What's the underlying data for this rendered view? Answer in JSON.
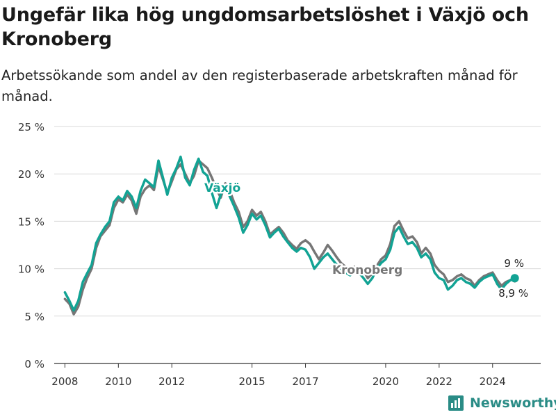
{
  "header": {
    "title": "Ungefär lika hög ungdomsarbetslöshet i Växjö och Kronoberg",
    "subtitle": "Arbetssökande som andel av den registerbaserade arbetskraften månad för månad."
  },
  "brand": {
    "name": "Newsworthy"
  },
  "colors": {
    "vaxjo": "#12a394",
    "kronoberg": "#767676",
    "grid": "#d9d9d9",
    "axis": "#333333",
    "brand": "#2a8c86"
  },
  "chart_data": {
    "type": "line",
    "xlim": [
      2007.6,
      2025.8
    ],
    "ylim": [
      0,
      25
    ],
    "grid": true,
    "y_ticks": [
      {
        "value": 0,
        "label": "0 %"
      },
      {
        "value": 5,
        "label": "5 %"
      },
      {
        "value": 10,
        "label": "10 %"
      },
      {
        "value": 15,
        "label": "15 %"
      },
      {
        "value": 20,
        "label": "20 %"
      },
      {
        "value": 25,
        "label": "25 %"
      }
    ],
    "x_ticks": [
      {
        "value": 2008,
        "label": "2008"
      },
      {
        "value": 2010,
        "label": "2010"
      },
      {
        "value": 2012,
        "label": "2012"
      },
      {
        "value": 2015,
        "label": "2015"
      },
      {
        "value": 2017,
        "label": "2017"
      },
      {
        "value": 2020,
        "label": "2020"
      },
      {
        "value": 2022,
        "label": "2022"
      },
      {
        "value": 2024,
        "label": "2024"
      }
    ],
    "series": [
      {
        "name": "Kronoberg",
        "color": "#767676",
        "end_label": "8,9 %",
        "points": [
          [
            2008.0,
            6.8
          ],
          [
            2008.17,
            6.3
          ],
          [
            2008.33,
            5.2
          ],
          [
            2008.5,
            6.0
          ],
          [
            2008.67,
            7.8
          ],
          [
            2008.83,
            9.0
          ],
          [
            2009.0,
            10.0
          ],
          [
            2009.17,
            12.2
          ],
          [
            2009.33,
            13.4
          ],
          [
            2009.5,
            14.0
          ],
          [
            2009.67,
            14.6
          ],
          [
            2009.83,
            16.4
          ],
          [
            2010.0,
            17.3
          ],
          [
            2010.17,
            17.0
          ],
          [
            2010.33,
            17.8
          ],
          [
            2010.5,
            17.2
          ],
          [
            2010.67,
            15.8
          ],
          [
            2010.83,
            17.6
          ],
          [
            2011.0,
            18.4
          ],
          [
            2011.17,
            18.8
          ],
          [
            2011.33,
            18.3
          ],
          [
            2011.5,
            20.8
          ],
          [
            2011.67,
            19.4
          ],
          [
            2011.83,
            18.0
          ],
          [
            2012.0,
            19.2
          ],
          [
            2012.17,
            20.5
          ],
          [
            2012.33,
            21.0
          ],
          [
            2012.5,
            20.0
          ],
          [
            2012.67,
            19.0
          ],
          [
            2012.83,
            19.8
          ],
          [
            2013.0,
            21.4
          ],
          [
            2013.17,
            21.0
          ],
          [
            2013.33,
            20.6
          ],
          [
            2013.5,
            19.6
          ],
          [
            2013.67,
            18.4
          ],
          [
            2013.83,
            17.5
          ],
          [
            2014.0,
            19.0
          ],
          [
            2014.17,
            18.2
          ],
          [
            2014.33,
            17.0
          ],
          [
            2014.5,
            16.0
          ],
          [
            2014.67,
            14.4
          ],
          [
            2014.83,
            15.0
          ],
          [
            2015.0,
            16.2
          ],
          [
            2015.17,
            15.6
          ],
          [
            2015.33,
            16.0
          ],
          [
            2015.5,
            15.0
          ],
          [
            2015.67,
            13.6
          ],
          [
            2015.83,
            14.0
          ],
          [
            2016.0,
            14.4
          ],
          [
            2016.17,
            13.8
          ],
          [
            2016.33,
            13.0
          ],
          [
            2016.5,
            12.5
          ],
          [
            2016.67,
            12.1
          ],
          [
            2016.83,
            12.7
          ],
          [
            2017.0,
            13.0
          ],
          [
            2017.17,
            12.6
          ],
          [
            2017.33,
            11.8
          ],
          [
            2017.5,
            11.0
          ],
          [
            2017.67,
            11.7
          ],
          [
            2017.83,
            12.5
          ],
          [
            2018.0,
            11.9
          ],
          [
            2018.17,
            11.2
          ],
          [
            2018.33,
            10.6
          ],
          [
            2018.5,
            10.2
          ],
          [
            2018.67,
            9.8
          ],
          [
            2018.83,
            10.2
          ],
          [
            2019.0,
            10.0
          ],
          [
            2019.17,
            9.8
          ],
          [
            2019.33,
            9.0
          ],
          [
            2019.5,
            9.5
          ],
          [
            2019.67,
            10.3
          ],
          [
            2019.83,
            11.0
          ],
          [
            2020.0,
            11.4
          ],
          [
            2020.17,
            12.6
          ],
          [
            2020.33,
            14.5
          ],
          [
            2020.5,
            15.0
          ],
          [
            2020.67,
            14.0
          ],
          [
            2020.83,
            13.2
          ],
          [
            2021.0,
            13.4
          ],
          [
            2021.17,
            12.8
          ],
          [
            2021.33,
            11.6
          ],
          [
            2021.5,
            12.2
          ],
          [
            2021.67,
            11.6
          ],
          [
            2021.83,
            10.4
          ],
          [
            2022.0,
            9.8
          ],
          [
            2022.17,
            9.4
          ],
          [
            2022.33,
            8.6
          ],
          [
            2022.5,
            8.8
          ],
          [
            2022.67,
            9.2
          ],
          [
            2022.83,
            9.4
          ],
          [
            2023.0,
            9.0
          ],
          [
            2023.17,
            8.8
          ],
          [
            2023.33,
            8.2
          ],
          [
            2023.5,
            8.8
          ],
          [
            2023.67,
            9.2
          ],
          [
            2023.83,
            9.4
          ],
          [
            2024.0,
            9.6
          ],
          [
            2024.17,
            8.8
          ],
          [
            2024.33,
            8.2
          ],
          [
            2024.5,
            8.6
          ],
          [
            2024.67,
            8.8
          ],
          [
            2024.83,
            8.9
          ]
        ]
      },
      {
        "name": "Växjö",
        "color": "#12a394",
        "end_label": "9 %",
        "points": [
          [
            2008.0,
            7.5
          ],
          [
            2008.17,
            6.6
          ],
          [
            2008.33,
            5.6
          ],
          [
            2008.5,
            6.6
          ],
          [
            2008.67,
            8.6
          ],
          [
            2008.83,
            9.5
          ],
          [
            2009.0,
            10.4
          ],
          [
            2009.17,
            12.7
          ],
          [
            2009.33,
            13.6
          ],
          [
            2009.5,
            14.4
          ],
          [
            2009.67,
            15.0
          ],
          [
            2009.83,
            17.0
          ],
          [
            2010.0,
            17.6
          ],
          [
            2010.17,
            17.2
          ],
          [
            2010.33,
            18.2
          ],
          [
            2010.5,
            17.6
          ],
          [
            2010.67,
            16.4
          ],
          [
            2010.83,
            18.2
          ],
          [
            2011.0,
            19.4
          ],
          [
            2011.17,
            19.0
          ],
          [
            2011.33,
            18.6
          ],
          [
            2011.5,
            21.4
          ],
          [
            2011.67,
            19.6
          ],
          [
            2011.83,
            17.8
          ],
          [
            2012.0,
            19.6
          ],
          [
            2012.17,
            20.6
          ],
          [
            2012.33,
            21.8
          ],
          [
            2012.5,
            19.6
          ],
          [
            2012.67,
            18.8
          ],
          [
            2012.83,
            20.4
          ],
          [
            2013.0,
            21.6
          ],
          [
            2013.17,
            20.2
          ],
          [
            2013.33,
            19.8
          ],
          [
            2013.5,
            18.0
          ],
          [
            2013.67,
            16.4
          ],
          [
            2013.83,
            17.8
          ],
          [
            2014.0,
            18.8
          ],
          [
            2014.17,
            17.6
          ],
          [
            2014.33,
            16.6
          ],
          [
            2014.5,
            15.4
          ],
          [
            2014.67,
            13.8
          ],
          [
            2014.83,
            14.6
          ],
          [
            2015.0,
            15.8
          ],
          [
            2015.17,
            15.2
          ],
          [
            2015.33,
            15.6
          ],
          [
            2015.5,
            14.6
          ],
          [
            2015.67,
            13.3
          ],
          [
            2015.83,
            13.8
          ],
          [
            2016.0,
            14.2
          ],
          [
            2016.17,
            13.4
          ],
          [
            2016.33,
            12.8
          ],
          [
            2016.5,
            12.2
          ],
          [
            2016.67,
            11.8
          ],
          [
            2016.83,
            12.2
          ],
          [
            2017.0,
            12.0
          ],
          [
            2017.17,
            11.2
          ],
          [
            2017.33,
            10.0
          ],
          [
            2017.5,
            10.6
          ],
          [
            2017.67,
            11.2
          ],
          [
            2017.83,
            11.6
          ],
          [
            2018.0,
            11.0
          ],
          [
            2018.17,
            10.4
          ],
          [
            2018.33,
            9.8
          ],
          [
            2018.5,
            9.6
          ],
          [
            2018.67,
            9.3
          ],
          [
            2018.83,
            9.8
          ],
          [
            2019.0,
            9.6
          ],
          [
            2019.17,
            9.0
          ],
          [
            2019.33,
            8.4
          ],
          [
            2019.5,
            9.0
          ],
          [
            2019.67,
            10.0
          ],
          [
            2019.83,
            10.6
          ],
          [
            2020.0,
            11.0
          ],
          [
            2020.17,
            12.0
          ],
          [
            2020.33,
            13.8
          ],
          [
            2020.5,
            14.4
          ],
          [
            2020.67,
            13.4
          ],
          [
            2020.83,
            12.6
          ],
          [
            2021.0,
            12.8
          ],
          [
            2021.17,
            12.2
          ],
          [
            2021.33,
            11.2
          ],
          [
            2021.5,
            11.6
          ],
          [
            2021.67,
            11.0
          ],
          [
            2021.83,
            9.6
          ],
          [
            2022.0,
            9.0
          ],
          [
            2022.17,
            8.8
          ],
          [
            2022.33,
            7.8
          ],
          [
            2022.5,
            8.2
          ],
          [
            2022.67,
            8.8
          ],
          [
            2022.83,
            9.0
          ],
          [
            2023.0,
            8.6
          ],
          [
            2023.17,
            8.4
          ],
          [
            2023.33,
            8.0
          ],
          [
            2023.5,
            8.6
          ],
          [
            2023.67,
            9.0
          ],
          [
            2023.83,
            9.2
          ],
          [
            2024.0,
            9.4
          ],
          [
            2024.17,
            8.4
          ],
          [
            2024.33,
            7.8
          ],
          [
            2024.5,
            8.4
          ],
          [
            2024.67,
            8.8
          ],
          [
            2024.83,
            9.0
          ]
        ]
      }
    ]
  }
}
